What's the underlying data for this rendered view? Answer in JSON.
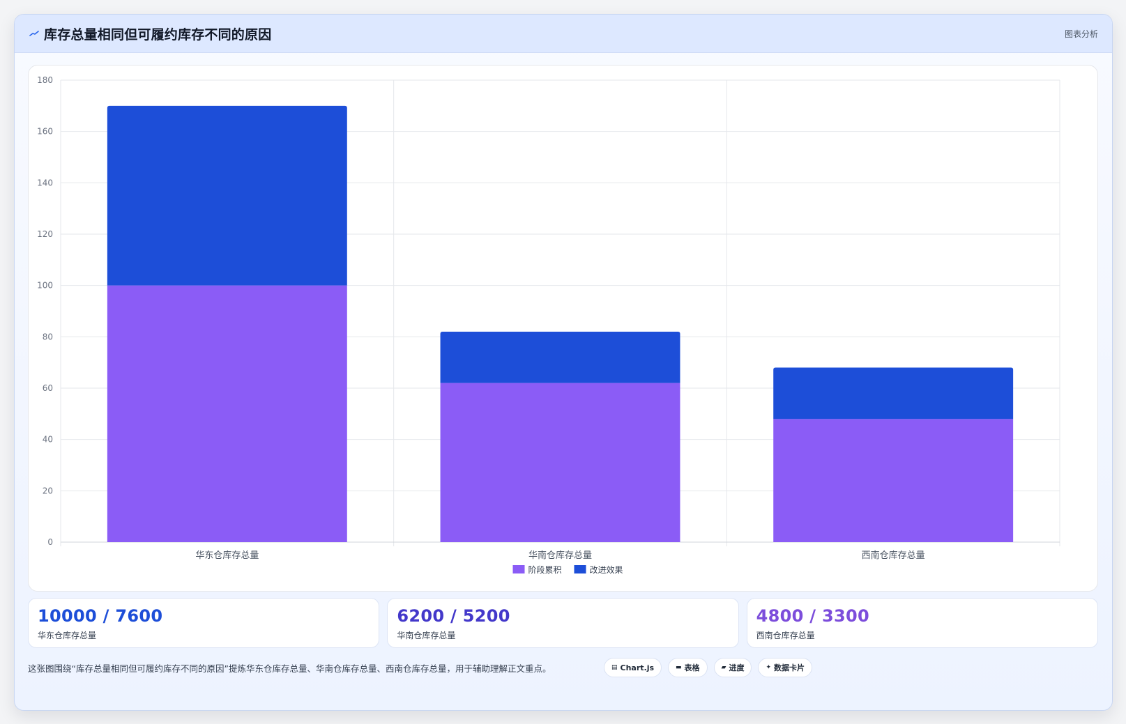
{
  "header": {
    "title": "库存总量相同但可履约库存不同的原因",
    "right_label": "图表分析",
    "icon": "trend-line-icon"
  },
  "chart_data": {
    "type": "bar",
    "stacked": true,
    "categories": [
      "华东仓库存总量",
      "华南仓库存总量",
      "西南仓库存总量"
    ],
    "series": [
      {
        "name": "阶段累积",
        "color": "#8b5cf6",
        "values": [
          100,
          62,
          48
        ]
      },
      {
        "name": "改进效果",
        "color": "#1d4ed8",
        "values": [
          70,
          20,
          20
        ]
      }
    ],
    "ylim": [
      0,
      180
    ],
    "yticks": [
      0,
      20,
      40,
      60,
      80,
      100,
      120,
      140,
      160,
      180
    ],
    "grid": true,
    "legend_position": "bottom"
  },
  "kpis": [
    {
      "value": "10000 / 7600",
      "label": "华东仓库存总量",
      "color": "#1d4ed8"
    },
    {
      "value": "6200 / 5200",
      "label": "华南仓库存总量",
      "color": "#4338ca"
    },
    {
      "value": "4800 / 3300",
      "label": "西南仓库存总量",
      "color": "#7c4ddb"
    }
  ],
  "footer": {
    "description": "这张图围绕“库存总量相同但可履约库存不同的原因”提炼华东仓库存总量、华南仓库存总量、西南仓库存总量，用于辅助理解正文重点。",
    "tags": [
      {
        "label": "Chart.js",
        "icon": "▤"
      },
      {
        "label": "表格",
        "icon": "▬"
      },
      {
        "label": "进度",
        "icon": "▰"
      },
      {
        "label": "数据卡片",
        "icon": "✦"
      }
    ]
  }
}
